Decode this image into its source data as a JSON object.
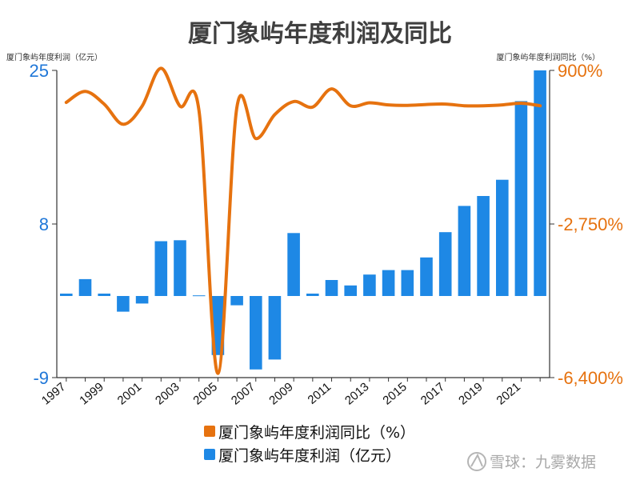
{
  "chart_data": {
    "type": "bar+line",
    "title": "厦门象屿年度利润及同比",
    "left_axis": {
      "label": "厦门象屿年度利润（亿元）",
      "ticks": [
        "25",
        "8",
        "-9"
      ],
      "range": [
        -9,
        25
      ],
      "color": "#1f77d8"
    },
    "right_axis": {
      "label": "厦门象屿年度利润同比（%）",
      "ticks": [
        "900%",
        "-2,750%",
        "-6,400%"
      ],
      "range": [
        -6400,
        900
      ],
      "color": "#e6720f"
    },
    "x_tick_labels": [
      "1997",
      "1999",
      "2001",
      "2003",
      "2005",
      "2007",
      "2009",
      "2011",
      "2013",
      "2015",
      "2017",
      "2019",
      "2021"
    ],
    "years": [
      1997,
      1998,
      1999,
      2000,
      2001,
      2002,
      2003,
      2004,
      2005,
      2006,
      2007,
      2008,
      2009,
      2010,
      2011,
      2012,
      2013,
      2014,
      2015,
      2016,
      2017,
      2018,
      2019,
      2020,
      2021,
      2022
    ],
    "series": [
      {
        "name": "厦门象屿年度利润（亿元）",
        "type": "bar",
        "color": "#1e88e5",
        "values": [
          0.3,
          1.9,
          0.3,
          -1.7,
          -0.8,
          6.1,
          6.2,
          0.1,
          -6.5,
          -1.0,
          -8.1,
          -7.0,
          7.0,
          0.3,
          1.8,
          1.2,
          2.4,
          2.9,
          2.9,
          4.3,
          7.1,
          10.0,
          11.1,
          12.9,
          21.6,
          25.0
        ]
      },
      {
        "name": "厦门象屿年度利润同比（%）",
        "type": "line",
        "color": "#e6720f",
        "values": [
          140,
          400,
          100,
          -380,
          50,
          950,
          50,
          -50,
          -6300,
          20,
          -720,
          -150,
          160,
          30,
          460,
          60,
          130,
          80,
          70,
          90,
          100,
          60,
          60,
          80,
          120,
          60
        ]
      }
    ],
    "legend_position": "bottom"
  },
  "watermark": {
    "text": "雪球：九雾数据"
  }
}
